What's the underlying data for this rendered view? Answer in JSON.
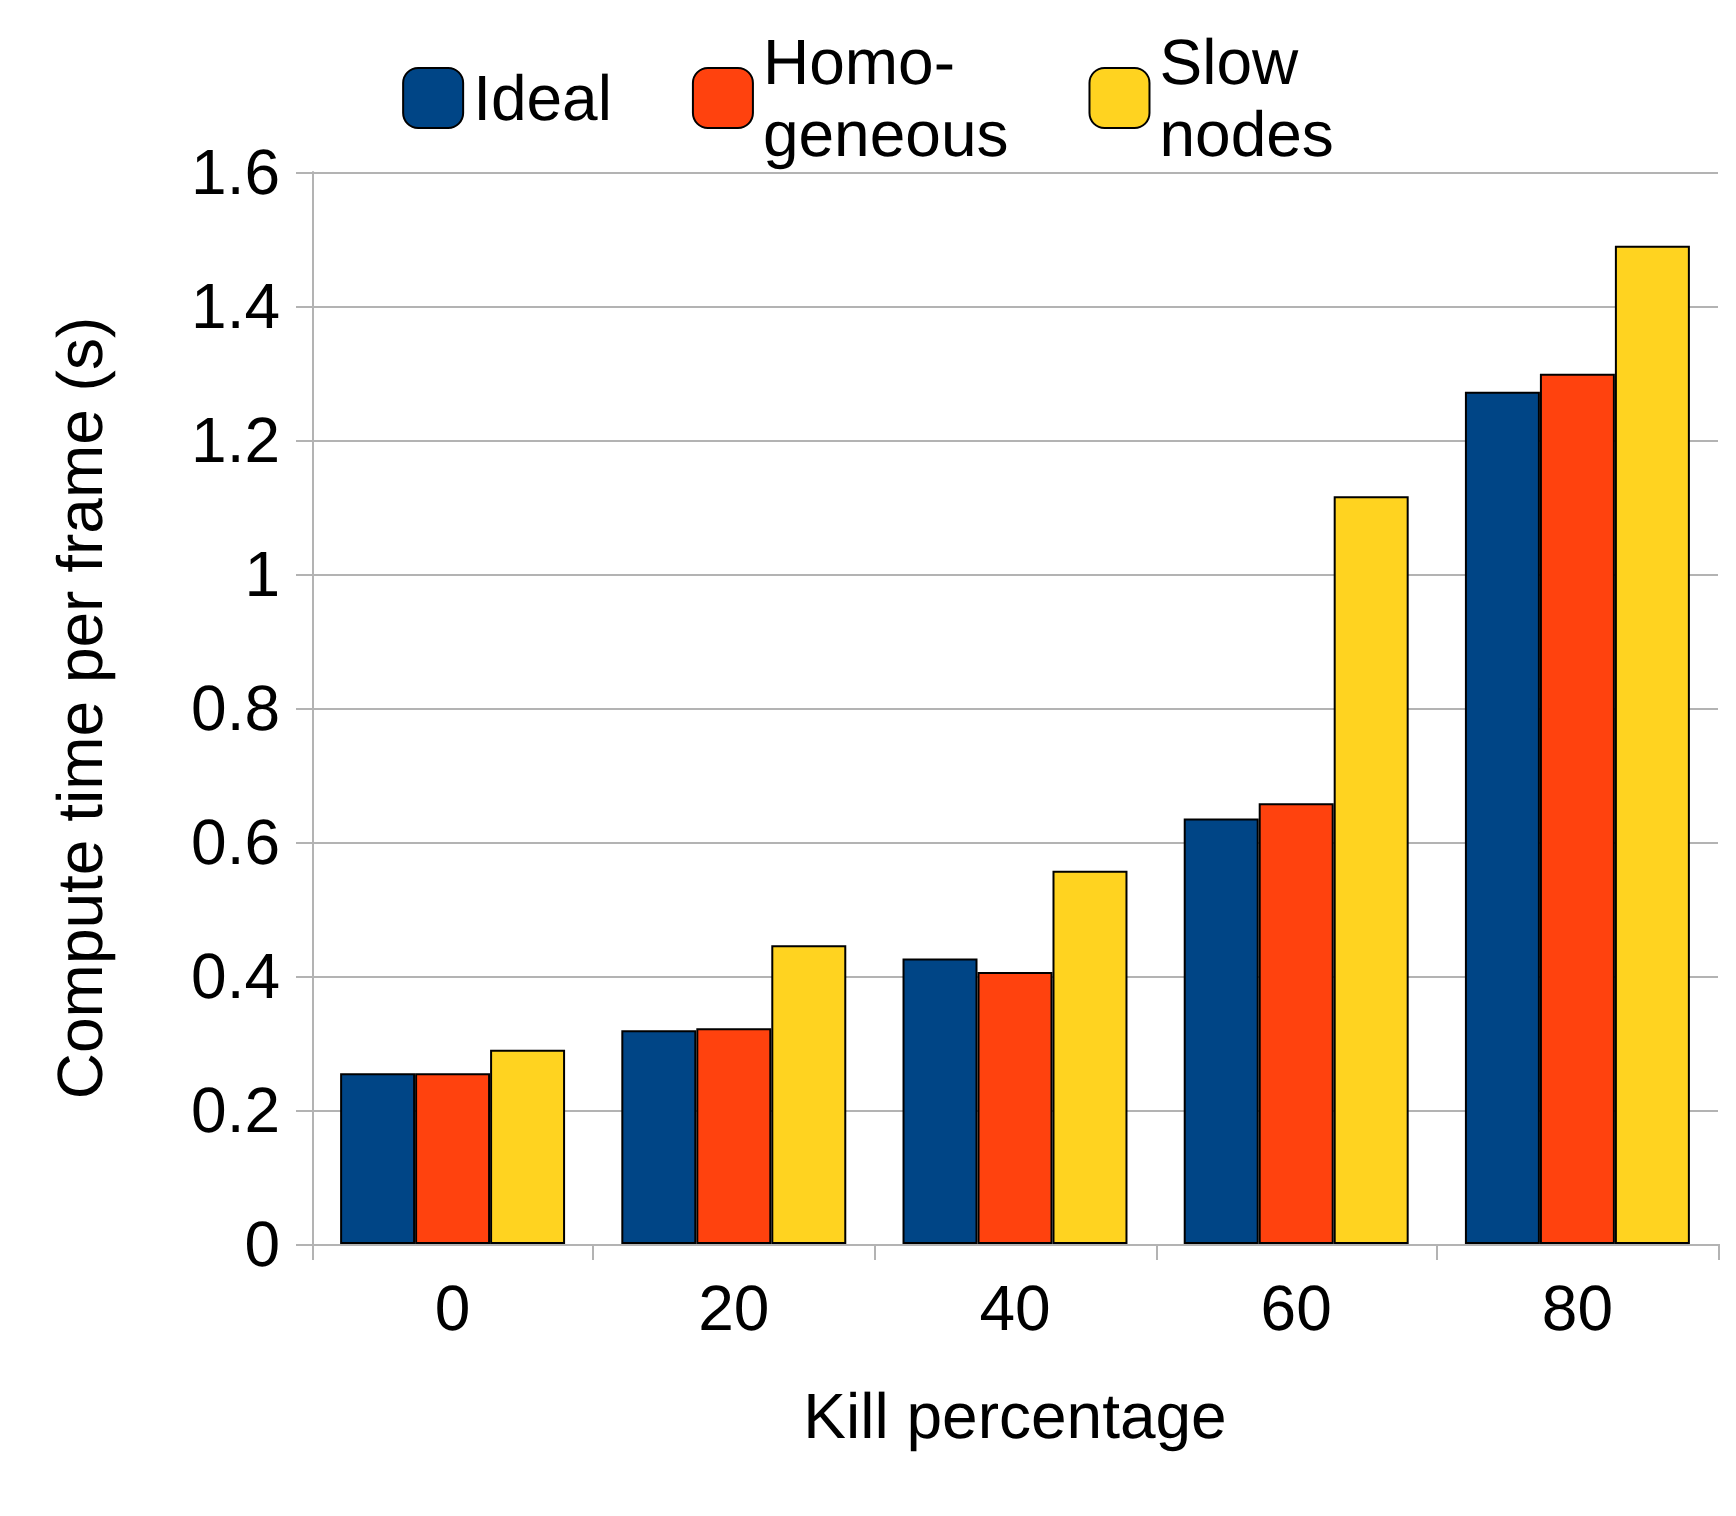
{
  "chart_data": {
    "type": "bar",
    "xlabel": "Kill percentage",
    "ylabel": "Compute time per frame (s)",
    "categories": [
      "0",
      "20",
      "40",
      "60",
      "80"
    ],
    "series": [
      {
        "name": "Ideal",
        "color": "#004586",
        "values": [
          0.255,
          0.319,
          0.426,
          0.635,
          1.272
        ]
      },
      {
        "name": "Homo-\ngeneous",
        "color": "#ff420e",
        "values": [
          0.255,
          0.322,
          0.406,
          0.658,
          1.299
        ]
      },
      {
        "name": "Slow\nnodes",
        "color": "#ffd320",
        "values": [
          0.29,
          0.446,
          0.557,
          1.116,
          1.49
        ]
      }
    ],
    "ylim": [
      0,
      1.6
    ],
    "yticks": [
      0,
      0.2,
      0.4,
      0.6,
      0.8,
      1,
      1.2,
      1.4,
      1.6
    ],
    "grid": "y",
    "legend": "top"
  }
}
